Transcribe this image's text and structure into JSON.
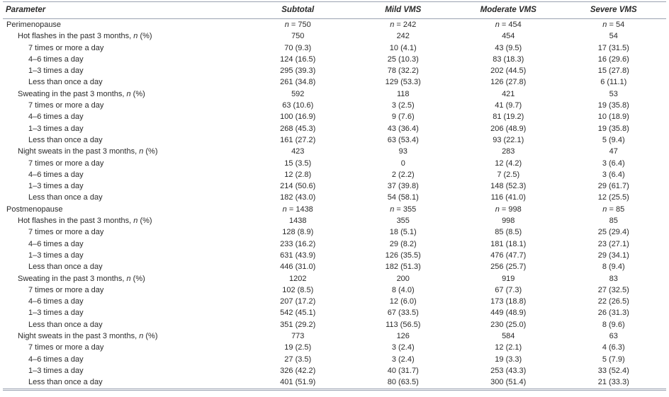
{
  "page": {
    "background_color": "#ffffff",
    "text_color": "#2a2a2a",
    "rule_color": "#9aa2b1"
  },
  "table": {
    "columns": [
      {
        "label": "Parameter",
        "align": "left"
      },
      {
        "label": "Subtotal",
        "align": "center"
      },
      {
        "label": "Mild VMS",
        "align": "center"
      },
      {
        "label": "Moderate VMS",
        "align": "center"
      },
      {
        "label": "Severe VMS",
        "align": "center"
      }
    ],
    "rows": [
      {
        "indent": 0,
        "label": "Perimenopause",
        "values": [
          "n = 750",
          "n = 242",
          "n = 454",
          "n = 54"
        ]
      },
      {
        "indent": 1,
        "label": "Hot flashes in the past 3 months, n (%)",
        "values": [
          "750",
          "242",
          "454",
          "54"
        ]
      },
      {
        "indent": 2,
        "label": "7 times or more a day",
        "values": [
          "70 (9.3)",
          "10 (4.1)",
          "43 (9.5)",
          "17 (31.5)"
        ]
      },
      {
        "indent": 2,
        "label": "4–6 times a day",
        "values": [
          "124 (16.5)",
          "25 (10.3)",
          "83 (18.3)",
          "16 (29.6)"
        ]
      },
      {
        "indent": 2,
        "label": "1–3 times a day",
        "values": [
          "295 (39.3)",
          "78 (32.2)",
          "202 (44.5)",
          "15 (27.8)"
        ]
      },
      {
        "indent": 2,
        "label": "Less than once a day",
        "values": [
          "261 (34.8)",
          "129 (53.3)",
          "126 (27.8)",
          "6 (11.1)"
        ]
      },
      {
        "indent": 1,
        "label": "Sweating in the past 3 months, n (%)",
        "values": [
          "592",
          "118",
          "421",
          "53"
        ]
      },
      {
        "indent": 2,
        "label": "7 times or more a day",
        "values": [
          "63 (10.6)",
          "3 (2.5)",
          "41 (9.7)",
          "19 (35.8)"
        ]
      },
      {
        "indent": 2,
        "label": "4–6 times a day",
        "values": [
          "100 (16.9)",
          "9 (7.6)",
          "81 (19.2)",
          "10 (18.9)"
        ]
      },
      {
        "indent": 2,
        "label": "1–3 times a day",
        "values": [
          "268 (45.3)",
          "43 (36.4)",
          "206 (48.9)",
          "19 (35.8)"
        ]
      },
      {
        "indent": 2,
        "label": "Less than once a day",
        "values": [
          "161 (27.2)",
          "63 (53.4)",
          "93 (22.1)",
          "5 (9.4)"
        ]
      },
      {
        "indent": 1,
        "label": "Night sweats in the past 3 months, n (%)",
        "values": [
          "423",
          "93",
          "283",
          "47"
        ]
      },
      {
        "indent": 2,
        "label": "7 times or more a day",
        "values": [
          "15 (3.5)",
          "0",
          "12 (4.2)",
          "3 (6.4)"
        ]
      },
      {
        "indent": 2,
        "label": "4–6 times a day",
        "values": [
          "12 (2.8)",
          "2 (2.2)",
          "7 (2.5)",
          "3 (6.4)"
        ]
      },
      {
        "indent": 2,
        "label": "1–3 times a day",
        "values": [
          "214 (50.6)",
          "37 (39.8)",
          "148 (52.3)",
          "29 (61.7)"
        ]
      },
      {
        "indent": 2,
        "label": "Less than once a day",
        "values": [
          "182 (43.0)",
          "54 (58.1)",
          "116 (41.0)",
          "12 (25.5)"
        ]
      },
      {
        "indent": 0,
        "label": "Postmenopause",
        "values": [
          "n = 1438",
          "n = 355",
          "n = 998",
          "n = 85"
        ]
      },
      {
        "indent": 1,
        "label": "Hot flashes in the past 3 months, n (%)",
        "values": [
          "1438",
          "355",
          "998",
          "85"
        ]
      },
      {
        "indent": 2,
        "label": "7 times or more a day",
        "values": [
          "128 (8.9)",
          "18 (5.1)",
          "85 (8.5)",
          "25 (29.4)"
        ]
      },
      {
        "indent": 2,
        "label": "4–6 times a day",
        "values": [
          "233 (16.2)",
          "29 (8.2)",
          "181 (18.1)",
          "23 (27.1)"
        ]
      },
      {
        "indent": 2,
        "label": "1–3 times a day",
        "values": [
          "631 (43.9)",
          "126 (35.5)",
          "476 (47.7)",
          "29 (34.1)"
        ]
      },
      {
        "indent": 2,
        "label": "Less than once a day",
        "values": [
          "446 (31.0)",
          "182 (51.3)",
          "256 (25.7)",
          "8 (9.4)"
        ]
      },
      {
        "indent": 1,
        "label": "Sweating in the past 3 months, n (%)",
        "values": [
          "1202",
          "200",
          "919",
          "83"
        ]
      },
      {
        "indent": 2,
        "label": "7 times or more a day",
        "values": [
          "102 (8.5)",
          "8 (4.0)",
          "67 (7.3)",
          "27 (32.5)"
        ]
      },
      {
        "indent": 2,
        "label": "4–6 times a day",
        "values": [
          "207 (17.2)",
          "12 (6.0)",
          "173 (18.8)",
          "22 (26.5)"
        ]
      },
      {
        "indent": 2,
        "label": "1–3 times a day",
        "values": [
          "542 (45.1)",
          "67 (33.5)",
          "449 (48.9)",
          "26 (31.3)"
        ]
      },
      {
        "indent": 2,
        "label": "Less than once a day",
        "values": [
          "351 (29.2)",
          "113 (56.5)",
          "230 (25.0)",
          "8 (9.6)"
        ]
      },
      {
        "indent": 1,
        "label": "Night sweats in the past 3 months, n (%)",
        "values": [
          "773",
          "126",
          "584",
          "63"
        ]
      },
      {
        "indent": 2,
        "label": "7 times or more a day",
        "values": [
          "19 (2.5)",
          "3 (2.4)",
          "12 (2.1)",
          "4 (6.3)"
        ]
      },
      {
        "indent": 2,
        "label": "4–6 times a day",
        "values": [
          "27 (3.5)",
          "3 (2.4)",
          "19 (3.3)",
          "5 (7.9)"
        ]
      },
      {
        "indent": 2,
        "label": "1–3 times a day",
        "values": [
          "326 (42.2)",
          "40 (31.7)",
          "253 (43.3)",
          "33 (52.4)"
        ]
      },
      {
        "indent": 2,
        "label": "Less than once a day",
        "values": [
          "401 (51.9)",
          "80 (63.5)",
          "300 (51.4)",
          "21 (33.3)"
        ]
      }
    ]
  }
}
